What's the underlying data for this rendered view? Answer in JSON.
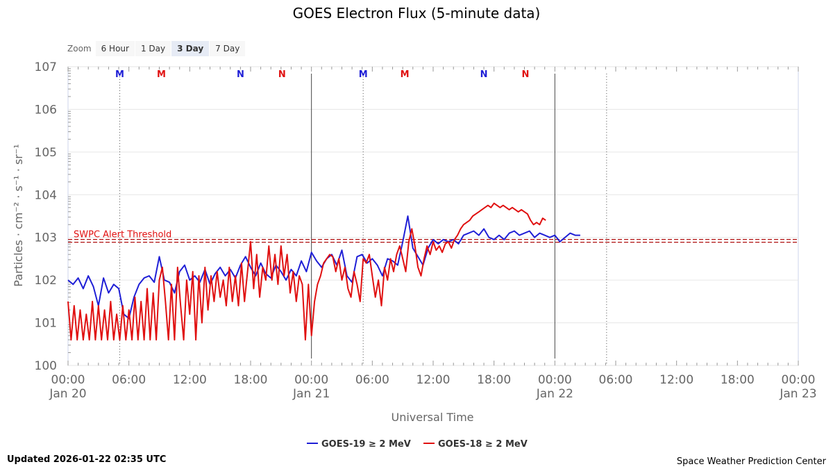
{
  "zoom": {
    "label": "Zoom",
    "buttons": [
      "6 Hour",
      "1 Day",
      "3 Day",
      "7 Day"
    ],
    "active": "3 Day"
  },
  "footer": {
    "updated": "Updated 2026-01-22 02:35 UTC",
    "credit": "Space Weather Prediction Center"
  },
  "colors": {
    "goes19": "#1f1fd6",
    "goes18": "#e01010",
    "threshold": "#b01010"
  },
  "chart_data": {
    "type": "line",
    "title": "GOES Electron Flux (5-minute data)",
    "xlabel": "Universal Time",
    "ylabel": "Particles · cm⁻² · s⁻¹ · sr⁻¹",
    "x_units": "hours since 2026-01-20 00:00 UTC",
    "xlim": [
      0,
      72
    ],
    "ylim_log10": [
      0,
      7
    ],
    "yticks": [
      {
        "exp": 0,
        "label": "100"
      },
      {
        "exp": 1,
        "label": "101"
      },
      {
        "exp": 2,
        "label": "102"
      },
      {
        "exp": 3,
        "label": "103"
      },
      {
        "exp": 4,
        "label": "104"
      },
      {
        "exp": 5,
        "label": "105"
      },
      {
        "exp": 6,
        "label": "106"
      },
      {
        "exp": 7,
        "label": "107"
      }
    ],
    "xticks": [
      {
        "h": 0,
        "time": "00:00",
        "date": "Jan 20"
      },
      {
        "h": 6,
        "time": "06:00",
        "date": ""
      },
      {
        "h": 12,
        "time": "12:00",
        "date": ""
      },
      {
        "h": 18,
        "time": "18:00",
        "date": ""
      },
      {
        "h": 24,
        "time": "00:00",
        "date": "Jan 21"
      },
      {
        "h": 30,
        "time": "06:00",
        "date": ""
      },
      {
        "h": 36,
        "time": "12:00",
        "date": ""
      },
      {
        "h": 42,
        "time": "18:00",
        "date": ""
      },
      {
        "h": 48,
        "time": "00:00",
        "date": "Jan 22"
      },
      {
        "h": 54,
        "time": "06:00",
        "date": ""
      },
      {
        "h": 60,
        "time": "12:00",
        "date": ""
      },
      {
        "h": 66,
        "time": "18:00",
        "date": ""
      },
      {
        "h": 72,
        "time": "00:00",
        "date": "Jan 23"
      }
    ],
    "threshold": {
      "label": "SWPC Alert Threshold",
      "exp": 2.92
    },
    "day_boundaries": [
      24,
      48
    ],
    "dotted_lines": [
      5.1,
      29.1,
      53.1
    ],
    "markers": [
      {
        "h": 5.1,
        "label": "M",
        "series": "goes19"
      },
      {
        "h": 9.2,
        "label": "M",
        "series": "goes18"
      },
      {
        "h": 17.0,
        "label": "N",
        "series": "goes19"
      },
      {
        "h": 21.1,
        "label": "N",
        "series": "goes18"
      },
      {
        "h": 29.1,
        "label": "M",
        "series": "goes19"
      },
      {
        "h": 33.2,
        "label": "M",
        "series": "goes18"
      },
      {
        "h": 41.0,
        "label": "N",
        "series": "goes19"
      },
      {
        "h": 45.1,
        "label": "N",
        "series": "goes18"
      }
    ],
    "series": [
      {
        "name": "GOES-19 ≥ 2 MeV",
        "color_key": "goes19",
        "points": [
          [
            0,
            2.0
          ],
          [
            0.5,
            1.9
          ],
          [
            1,
            2.05
          ],
          [
            1.5,
            1.8
          ],
          [
            2,
            2.1
          ],
          [
            2.5,
            1.85
          ],
          [
            3,
            1.4
          ],
          [
            3.5,
            2.05
          ],
          [
            4,
            1.7
          ],
          [
            4.5,
            1.9
          ],
          [
            5,
            1.8
          ],
          [
            5.5,
            1.2
          ],
          [
            6,
            1.1
          ],
          [
            6.5,
            1.6
          ],
          [
            7,
            1.9
          ],
          [
            7.5,
            2.05
          ],
          [
            8,
            2.1
          ],
          [
            8.5,
            1.95
          ],
          [
            9,
            2.55
          ],
          [
            9.5,
            2.0
          ],
          [
            10,
            1.95
          ],
          [
            10.5,
            1.7
          ],
          [
            11,
            2.2
          ],
          [
            11.5,
            2.35
          ],
          [
            12,
            2.0
          ],
          [
            12.5,
            2.1
          ],
          [
            13,
            1.95
          ],
          [
            13.5,
            2.25
          ],
          [
            14,
            1.9
          ],
          [
            14.5,
            2.15
          ],
          [
            15,
            2.3
          ],
          [
            15.5,
            2.1
          ],
          [
            16,
            2.25
          ],
          [
            16.5,
            2.05
          ],
          [
            17,
            2.35
          ],
          [
            17.5,
            2.55
          ],
          [
            18,
            2.3
          ],
          [
            18.5,
            2.1
          ],
          [
            19,
            2.4
          ],
          [
            19.5,
            2.15
          ],
          [
            20,
            2.05
          ],
          [
            20.5,
            2.35
          ],
          [
            21,
            2.2
          ],
          [
            21.5,
            2.0
          ],
          [
            22,
            2.25
          ],
          [
            22.5,
            2.1
          ],
          [
            23,
            2.45
          ],
          [
            23.5,
            2.2
          ],
          [
            24,
            2.65
          ],
          [
            24.5,
            2.45
          ],
          [
            25,
            2.3
          ],
          [
            25.5,
            2.5
          ],
          [
            26,
            2.6
          ],
          [
            26.5,
            2.35
          ],
          [
            27,
            2.7
          ],
          [
            27.5,
            2.1
          ],
          [
            28,
            1.95
          ],
          [
            28.5,
            2.55
          ],
          [
            29,
            2.6
          ],
          [
            29.5,
            2.4
          ],
          [
            30,
            2.5
          ],
          [
            30.5,
            2.35
          ],
          [
            31,
            2.1
          ],
          [
            31.5,
            2.5
          ],
          [
            32,
            2.45
          ],
          [
            32.5,
            2.35
          ],
          [
            33,
            2.9
          ],
          [
            33.5,
            3.5
          ],
          [
            34,
            2.75
          ],
          [
            34.5,
            2.55
          ],
          [
            35,
            2.35
          ],
          [
            35.5,
            2.75
          ],
          [
            36,
            2.95
          ],
          [
            36.5,
            2.85
          ],
          [
            37,
            2.95
          ],
          [
            37.5,
            2.9
          ],
          [
            38,
            2.95
          ],
          [
            38.5,
            2.85
          ],
          [
            39,
            3.05
          ],
          [
            39.5,
            3.1
          ],
          [
            40,
            3.15
          ],
          [
            40.5,
            3.05
          ],
          [
            41,
            3.2
          ],
          [
            41.5,
            3.0
          ],
          [
            42,
            2.95
          ],
          [
            42.5,
            3.05
          ],
          [
            43,
            2.95
          ],
          [
            43.5,
            3.1
          ],
          [
            44,
            3.15
          ],
          [
            44.5,
            3.05
          ],
          [
            45,
            3.1
          ],
          [
            45.5,
            3.15
          ],
          [
            46,
            3.0
          ],
          [
            46.5,
            3.1
          ],
          [
            47,
            3.05
          ],
          [
            47.5,
            3.0
          ],
          [
            48,
            3.05
          ],
          [
            48.5,
            2.9
          ],
          [
            49,
            3.0
          ],
          [
            49.5,
            3.1
          ],
          [
            50,
            3.05
          ],
          [
            50.5,
            3.05
          ]
        ]
      },
      {
        "name": "GOES-18 ≥ 2 MeV",
        "color_key": "goes18",
        "points": [
          [
            0,
            1.5
          ],
          [
            0.3,
            0.6
          ],
          [
            0.6,
            1.4
          ],
          [
            0.9,
            0.6
          ],
          [
            1.2,
            1.3
          ],
          [
            1.5,
            0.6
          ],
          [
            1.8,
            1.2
          ],
          [
            2.1,
            0.6
          ],
          [
            2.4,
            1.5
          ],
          [
            2.7,
            0.6
          ],
          [
            3,
            1.4
          ],
          [
            3.3,
            0.6
          ],
          [
            3.6,
            1.3
          ],
          [
            3.9,
            0.6
          ],
          [
            4.2,
            1.5
          ],
          [
            4.5,
            0.6
          ],
          [
            4.8,
            1.2
          ],
          [
            5.1,
            0.6
          ],
          [
            5.4,
            1.4
          ],
          [
            5.7,
            0.6
          ],
          [
            6,
            1.3
          ],
          [
            6.3,
            0.6
          ],
          [
            6.6,
            1.6
          ],
          [
            6.9,
            0.6
          ],
          [
            7.2,
            1.5
          ],
          [
            7.5,
            0.6
          ],
          [
            7.8,
            1.8
          ],
          [
            8.1,
            0.6
          ],
          [
            8.4,
            1.7
          ],
          [
            8.7,
            0.6
          ],
          [
            9,
            2.0
          ],
          [
            9.3,
            2.3
          ],
          [
            9.6,
            1.5
          ],
          [
            9.9,
            0.6
          ],
          [
            10.2,
            1.9
          ],
          [
            10.5,
            0.6
          ],
          [
            10.8,
            2.3
          ],
          [
            11.1,
            1.4
          ],
          [
            11.4,
            0.6
          ],
          [
            11.7,
            2.0
          ],
          [
            12,
            1.2
          ],
          [
            12.3,
            2.2
          ],
          [
            12.6,
            0.6
          ],
          [
            12.9,
            2.1
          ],
          [
            13.2,
            1.0
          ],
          [
            13.5,
            2.3
          ],
          [
            13.8,
            1.3
          ],
          [
            14.1,
            2.1
          ],
          [
            14.4,
            1.5
          ],
          [
            14.7,
            2.2
          ],
          [
            15,
            1.6
          ],
          [
            15.3,
            2.0
          ],
          [
            15.6,
            1.4
          ],
          [
            15.9,
            2.3
          ],
          [
            16.2,
            1.5
          ],
          [
            16.5,
            2.1
          ],
          [
            16.8,
            1.4
          ],
          [
            17.1,
            2.4
          ],
          [
            17.4,
            1.5
          ],
          [
            17.7,
            2.2
          ],
          [
            18,
            2.9
          ],
          [
            18.3,
            1.8
          ],
          [
            18.6,
            2.6
          ],
          [
            18.9,
            1.6
          ],
          [
            19.2,
            2.3
          ],
          [
            19.5,
            2.0
          ],
          [
            19.8,
            2.8
          ],
          [
            20.1,
            2.0
          ],
          [
            20.4,
            2.6
          ],
          [
            20.7,
            1.9
          ],
          [
            21,
            2.8
          ],
          [
            21.3,
            2.1
          ],
          [
            21.6,
            2.6
          ],
          [
            21.9,
            1.7
          ],
          [
            22.2,
            2.2
          ],
          [
            22.5,
            1.5
          ],
          [
            22.8,
            2.1
          ],
          [
            23.1,
            1.9
          ],
          [
            23.4,
            0.6
          ],
          [
            23.7,
            1.9
          ],
          [
            24,
            0.7
          ],
          [
            24.3,
            1.5
          ],
          [
            24.6,
            1.9
          ],
          [
            24.9,
            2.1
          ],
          [
            25.2,
            2.4
          ],
          [
            25.5,
            2.5
          ],
          [
            25.8,
            2.6
          ],
          [
            26.1,
            2.55
          ],
          [
            26.4,
            2.2
          ],
          [
            26.7,
            2.5
          ],
          [
            27,
            2.0
          ],
          [
            27.3,
            2.3
          ],
          [
            27.6,
            1.8
          ],
          [
            27.9,
            1.6
          ],
          [
            28.2,
            2.2
          ],
          [
            28.5,
            1.9
          ],
          [
            28.8,
            1.5
          ],
          [
            29.1,
            2.5
          ],
          [
            29.4,
            2.4
          ],
          [
            29.7,
            2.6
          ],
          [
            30,
            2.1
          ],
          [
            30.3,
            1.6
          ],
          [
            30.6,
            2.0
          ],
          [
            30.9,
            1.4
          ],
          [
            31.2,
            2.3
          ],
          [
            31.5,
            2.0
          ],
          [
            31.8,
            2.5
          ],
          [
            32.1,
            2.2
          ],
          [
            32.4,
            2.6
          ],
          [
            32.7,
            2.8
          ],
          [
            33,
            2.5
          ],
          [
            33.3,
            2.2
          ],
          [
            33.6,
            2.9
          ],
          [
            33.9,
            3.2
          ],
          [
            34.2,
            2.8
          ],
          [
            34.5,
            2.3
          ],
          [
            34.8,
            2.1
          ],
          [
            35.1,
            2.5
          ],
          [
            35.4,
            2.8
          ],
          [
            35.7,
            2.6
          ],
          [
            36,
            2.9
          ],
          [
            36.3,
            2.7
          ],
          [
            36.6,
            2.8
          ],
          [
            36.9,
            2.65
          ],
          [
            37.2,
            2.85
          ],
          [
            37.5,
            2.9
          ],
          [
            37.8,
            2.75
          ],
          [
            38.1,
            2.95
          ],
          [
            38.4,
            3.05
          ],
          [
            38.7,
            3.2
          ],
          [
            39,
            3.3
          ],
          [
            39.3,
            3.35
          ],
          [
            39.6,
            3.4
          ],
          [
            39.9,
            3.5
          ],
          [
            40.2,
            3.55
          ],
          [
            40.5,
            3.6
          ],
          [
            40.8,
            3.65
          ],
          [
            41.1,
            3.7
          ],
          [
            41.4,
            3.75
          ],
          [
            41.7,
            3.7
          ],
          [
            42,
            3.8
          ],
          [
            42.3,
            3.75
          ],
          [
            42.6,
            3.7
          ],
          [
            42.9,
            3.75
          ],
          [
            43.2,
            3.7
          ],
          [
            43.5,
            3.65
          ],
          [
            43.8,
            3.7
          ],
          [
            44.1,
            3.65
          ],
          [
            44.4,
            3.6
          ],
          [
            44.7,
            3.65
          ],
          [
            45,
            3.6
          ],
          [
            45.3,
            3.55
          ],
          [
            45.6,
            3.4
          ],
          [
            45.9,
            3.3
          ],
          [
            46.2,
            3.35
          ],
          [
            46.5,
            3.3
          ],
          [
            46.8,
            3.45
          ],
          [
            47.1,
            3.4
          ]
        ]
      }
    ]
  }
}
